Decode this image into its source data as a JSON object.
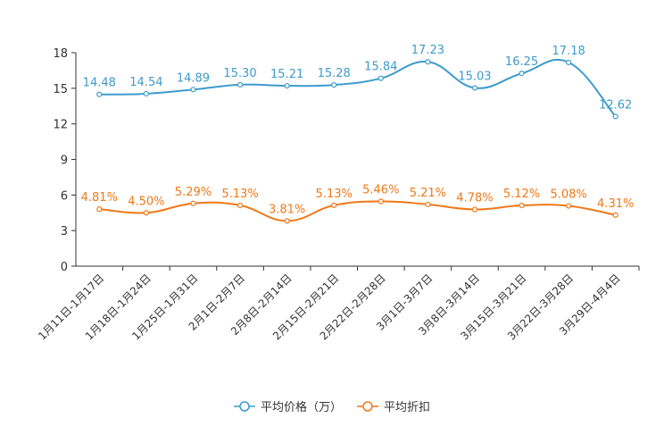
{
  "chart_data": {
    "type": "line",
    "categories": [
      "1月11日-1月17日",
      "1月18日-1月24日",
      "1月25日-1月31日",
      "2月1日-2月7日",
      "2月8日-2月14日",
      "2月15日-2月21日",
      "2月22日-2月28日",
      "3月1日-3月7日",
      "3月8日-3月14日",
      "3月15日-3月21日",
      "3月22日-3月28日",
      "3月29日-4月4日"
    ],
    "ylim": [
      0,
      18
    ],
    "yticks": [
      0,
      3,
      6,
      9,
      12,
      15,
      18
    ],
    "series": [
      {
        "name": "平均价格（万）",
        "color": "#3d9bcc",
        "values": [
          14.48,
          14.54,
          14.89,
          15.3,
          15.21,
          15.28,
          15.84,
          17.23,
          15.03,
          16.25,
          17.18,
          12.62
        ],
        "labels": [
          "14.48",
          "14.54",
          "14.89",
          "15.30",
          "15.21",
          "15.28",
          "15.84",
          "17.23",
          "15.03",
          "16.25",
          "17.18",
          "12.62"
        ]
      },
      {
        "name": "平均折扣",
        "color": "#f07818",
        "values": [
          4.81,
          4.5,
          5.29,
          5.13,
          3.81,
          5.13,
          5.46,
          5.21,
          4.78,
          5.12,
          5.08,
          4.31
        ],
        "labels": [
          "4.81%",
          "4.50%",
          "5.29%",
          "5.13%",
          "3.81%",
          "5.13%",
          "5.46%",
          "5.21%",
          "4.78%",
          "5.12%",
          "5.08%",
          "4.31%"
        ]
      }
    ]
  }
}
